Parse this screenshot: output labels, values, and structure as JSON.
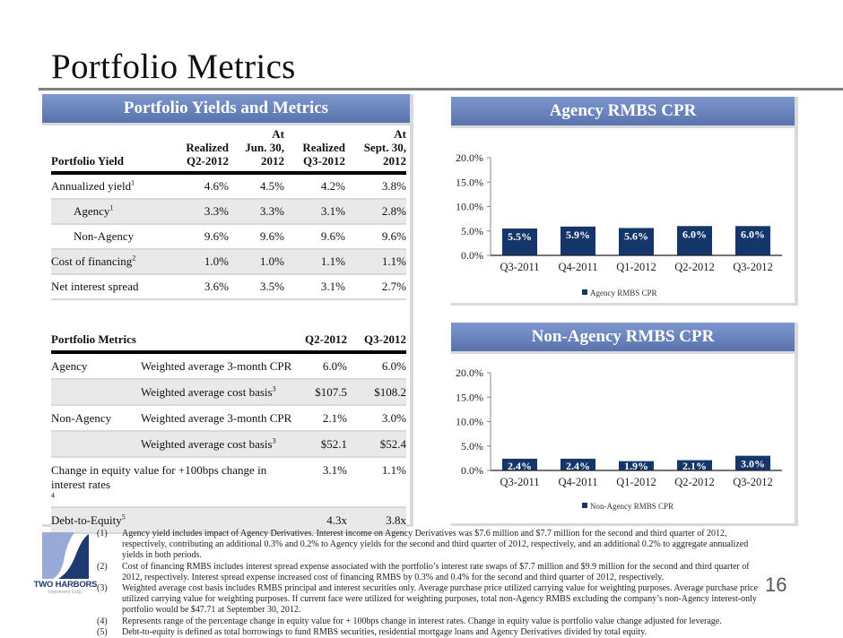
{
  "title": "Portfolio Metrics",
  "page_number": "16",
  "logo": {
    "name": "TWO HARBORS",
    "subtitle": "Investment Corp."
  },
  "colors": {
    "header_top": "#7d97ce",
    "header_bottom": "#5a73ac",
    "bar": "#14366b"
  },
  "left_panel": {
    "header": "Portfolio Yields and Metrics",
    "yield_table": {
      "columns": [
        {
          "line1": "",
          "line2": "",
          "line3": "Portfolio Yield"
        },
        {
          "line1": "",
          "line2": "Realized",
          "line3": "Q2-2012"
        },
        {
          "line1": "At",
          "line2": "Jun. 30,",
          "line3": "2012"
        },
        {
          "line1": "",
          "line2": "Realized",
          "line3": "Q3-2012"
        },
        {
          "line1": "At",
          "line2": "Sept. 30,",
          "line3": "2012"
        }
      ],
      "rows": [
        {
          "label": "Annualized yield",
          "sup": "1",
          "values": [
            "4.6%",
            "4.5%",
            "4.2%",
            "3.8%"
          ]
        },
        {
          "label": "Agency",
          "sup": "1",
          "values": [
            "3.3%",
            "3.3%",
            "3.1%",
            "2.8%"
          ]
        },
        {
          "label": "Non-Agency",
          "sup": "",
          "values": [
            "9.6%",
            "9.6%",
            "9.6%",
            "9.6%"
          ]
        },
        {
          "label": "Cost of financing",
          "sup": "2",
          "values": [
            "1.0%",
            "1.0%",
            "1.1%",
            "1.1%"
          ]
        },
        {
          "label": "Net interest spread",
          "sup": "",
          "values": [
            "3.6%",
            "3.5%",
            "3.1%",
            "2.7%"
          ]
        }
      ]
    },
    "metrics_table": {
      "columns": [
        "Portfolio Metrics",
        "Q2-2012",
        "Q3-2012"
      ],
      "rows": [
        {
          "group": "Agency",
          "label": "Weighted average 3-month CPR",
          "sup": "",
          "values": [
            "6.0%",
            "6.0%"
          ]
        },
        {
          "group": "",
          "label": "Weighted average cost basis",
          "sup": "3",
          "values": [
            "$107.5",
            "$108.2"
          ]
        },
        {
          "group": "Non-Agency",
          "label": "Weighted average 3-month CPR",
          "sup": "",
          "values": [
            "2.1%",
            "3.0%"
          ]
        },
        {
          "group": "",
          "label": "Weighted average cost basis",
          "sup": "3",
          "values": [
            "$52.1",
            "$52.4"
          ]
        },
        {
          "group": "Change in equity value for +100bps change in interest rates",
          "sup": "4",
          "values": [
            "3.1%",
            "1.1%"
          ]
        },
        {
          "group": "Debt-to-Equity",
          "sup": "5",
          "values": [
            "4.3x",
            "3.8x"
          ]
        }
      ]
    }
  },
  "chart_data": [
    {
      "type": "bar",
      "title": "Agency RMBS CPR",
      "categories": [
        "Q3-2011",
        "Q4-2011",
        "Q1-2012",
        "Q2-2012",
        "Q3-2012"
      ],
      "series": [
        {
          "name": "Agency RMBS CPR",
          "values": [
            5.5,
            5.9,
            5.6,
            6.0,
            6.0
          ],
          "labels": [
            "5.5%",
            "5.9%",
            "5.6%",
            "6.0%",
            "6.0%"
          ]
        }
      ],
      "yticks": [
        "0.0%",
        "5.0%",
        "10.0%",
        "15.0%",
        "20.0%"
      ],
      "ylim": [
        0,
        20
      ],
      "xlabel": "",
      "ylabel": "",
      "legend": "bottom",
      "grid": false
    },
    {
      "type": "bar",
      "title": "Non-Agency RMBS CPR",
      "categories": [
        "Q3-2011",
        "Q4-2011",
        "Q1-2012",
        "Q2-2012",
        "Q3-2012"
      ],
      "series": [
        {
          "name": "Non-Agency RMBS CPR",
          "values": [
            2.4,
            2.4,
            1.9,
            2.1,
            3.0
          ],
          "labels": [
            "2.4%",
            "2.4%",
            "1.9%",
            "2.1%",
            "3.0%"
          ]
        }
      ],
      "yticks": [
        "0.0%",
        "5.0%",
        "10.0%",
        "15.0%",
        "20.0%"
      ],
      "ylim": [
        0,
        20
      ],
      "xlabel": "",
      "ylabel": "",
      "legend": "bottom",
      "grid": false
    }
  ],
  "footnotes": [
    {
      "num": "(1)",
      "text": "Agency yield includes impact of Agency Derivatives. Interest income on Agency Derivatives was $7.6 million and $7.7 million for the second and third quarter of 2012, respectively, contributing an additional 0.3% and 0.2% to Agency yields for the second and third quarter of 2012, respectively, and an additional 0.2% to aggregate annualized yields in both periods."
    },
    {
      "num": "(2)",
      "text": "Cost of financing RMBS includes interest spread expense associated with the portfolio’s interest rate swaps of $7.7 million and $9.9 million for the second and third quarter of 2012, respectively.  Interest spread expense increased cost of financing RMBS by 0.3% and 0.4% for the second and third quarter of 2012, respectively."
    },
    {
      "num": "(3)",
      "text": "Weighted average cost basis includes RMBS principal and interest securities only. Average purchase price utilized carrying value for weighting purposes. Average purchase price utilized carrying value for weighting purposes. If current face were utilized for weighting purposes, total non-Agency RMBS excluding the company’s non-Agency interest-only portfolio would be $47.71 at September 30, 2012."
    },
    {
      "num": "(4)",
      "text": "Represents range of the percentage change in equity value for + 100bps change in interest rates. Change in equity value is portfolio value change adjusted for leverage."
    },
    {
      "num": "(5)",
      "text": "Debt-to-equity is defined as total borrowings to fund RMBS securities, residential mortgage loans and Agency Derivatives divided by total equity."
    }
  ]
}
